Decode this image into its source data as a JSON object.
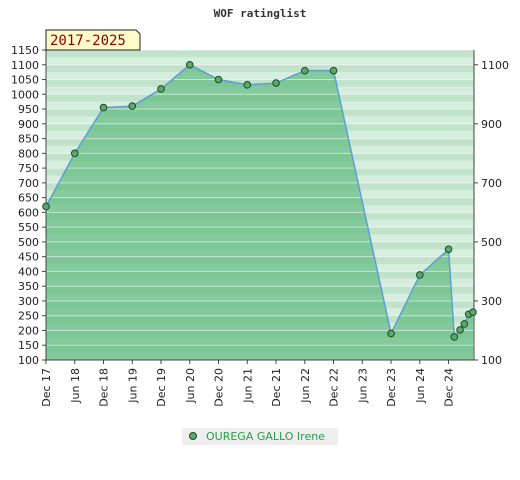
{
  "chart_data": {
    "type": "area",
    "title": "WOF ratinglist",
    "period_badge": "2017-2025",
    "ylim": [
      100,
      1150
    ],
    "left_ticks": [
      100,
      150,
      200,
      250,
      300,
      350,
      400,
      450,
      500,
      550,
      600,
      650,
      700,
      750,
      800,
      850,
      900,
      950,
      1000,
      1050,
      1100,
      1150
    ],
    "right_ticks": [
      100,
      300,
      500,
      700,
      900,
      1100
    ],
    "x_labels": [
      "Dec 17",
      "Jun 18",
      "Dec 18",
      "Jun 19",
      "Dec 19",
      "Jun 20",
      "Dec 20",
      "Jun 21",
      "Dec 21",
      "Jun 22",
      "Dec 22",
      "Jun 23",
      "Dec 23",
      "Jun 24",
      "Dec 24"
    ],
    "x_index_range": [
      0,
      14.85
    ],
    "grid": true,
    "legend_position": "bottom-center",
    "colors": {
      "fill": "#7dc796",
      "line": "#5b9fd6",
      "marker": "#5aa86a",
      "badge_bg": "#fffbc8"
    },
    "series": [
      {
        "name": "OUREGA GALLO Irene",
        "points": [
          {
            "x": 0,
            "y": 620
          },
          {
            "x": 1,
            "y": 800
          },
          {
            "x": 2,
            "y": 955
          },
          {
            "x": 3,
            "y": 960
          },
          {
            "x": 4,
            "y": 1018
          },
          {
            "x": 5,
            "y": 1100
          },
          {
            "x": 6,
            "y": 1050
          },
          {
            "x": 7,
            "y": 1032
          },
          {
            "x": 8,
            "y": 1038
          },
          {
            "x": 9,
            "y": 1080
          },
          {
            "x": 10,
            "y": 1080
          },
          {
            "x": 12,
            "y": 190
          },
          {
            "x": 13,
            "y": 388
          },
          {
            "x": 14,
            "y": 475
          },
          {
            "x": 14.2,
            "y": 178
          },
          {
            "x": 14.4,
            "y": 202
          },
          {
            "x": 14.55,
            "y": 222
          },
          {
            "x": 14.7,
            "y": 255
          },
          {
            "x": 14.85,
            "y": 262
          }
        ]
      }
    ]
  }
}
